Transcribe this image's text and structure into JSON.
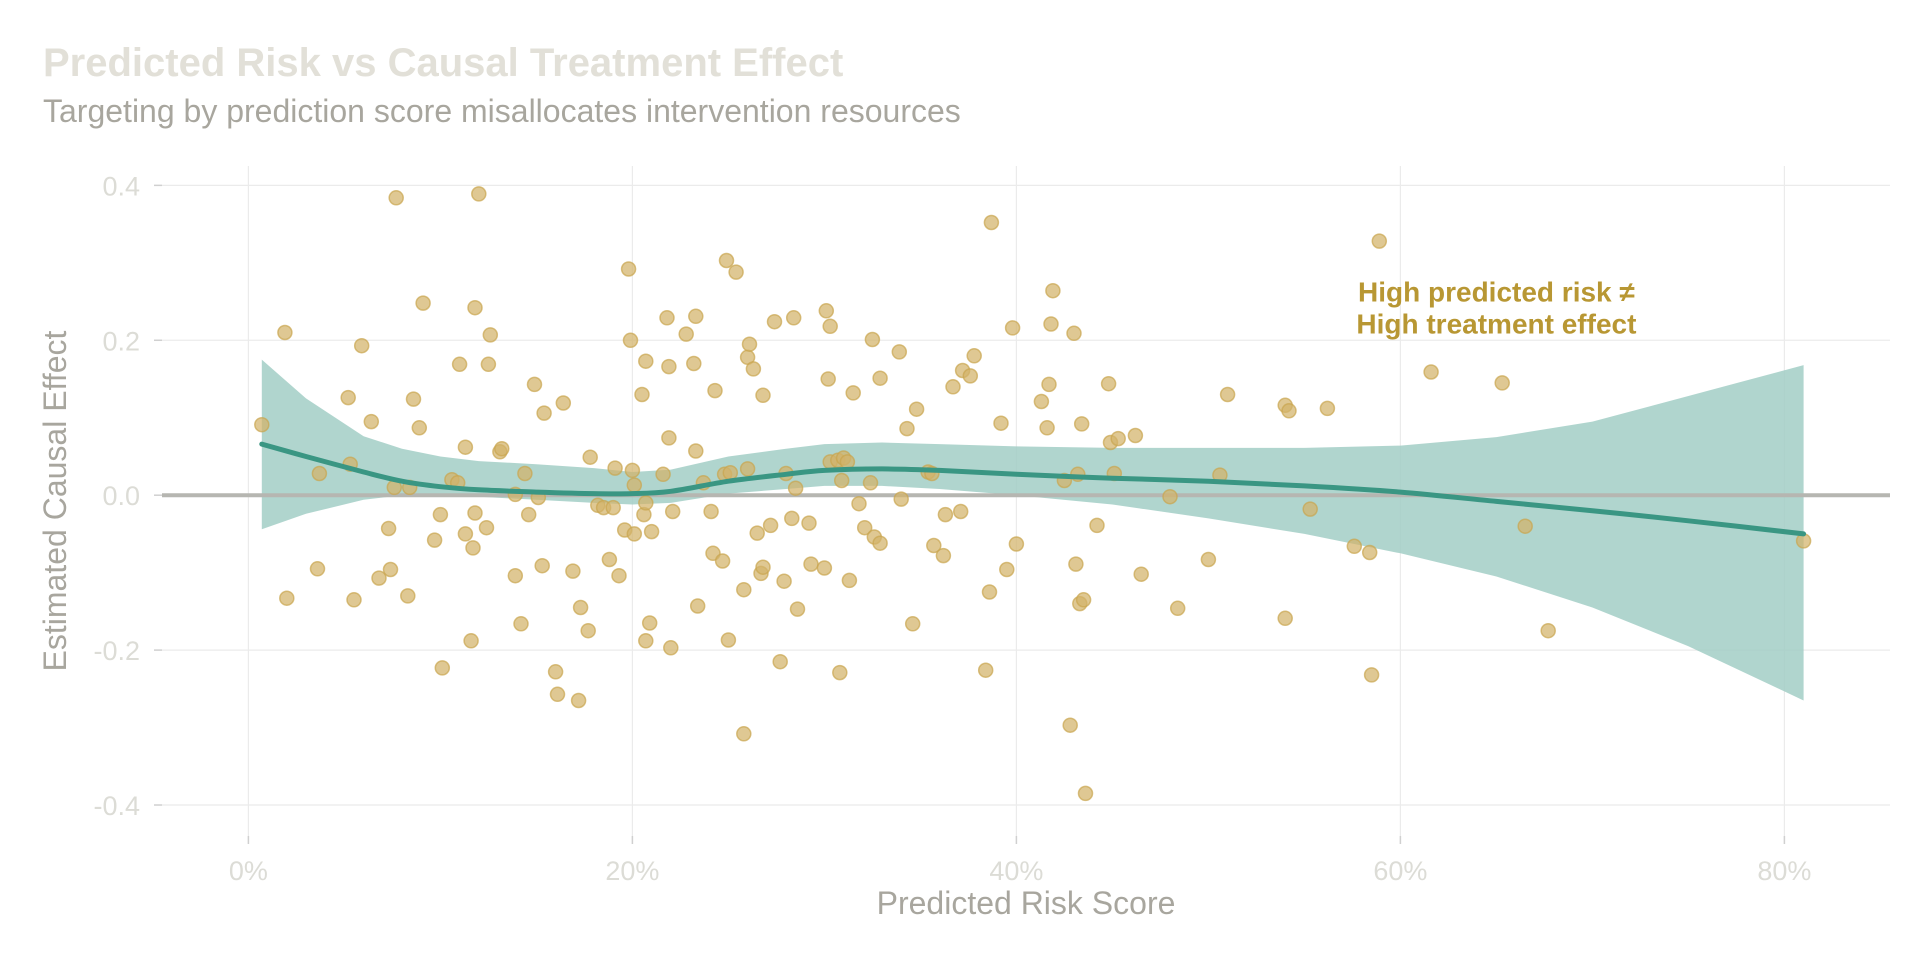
{
  "chart_data": {
    "type": "scatter",
    "title": "Predicted Risk vs Causal Treatment Effect",
    "subtitle": "Targeting by prediction score misallocates intervention resources",
    "xlabel": "Predicted Risk Score",
    "ylabel": "Estimated Causal Effect",
    "xlim": [
      -0.045,
      0.855
    ],
    "ylim": [
      -0.44,
      0.425
    ],
    "x_ticks": [
      0,
      0.2,
      0.4,
      0.6,
      0.8
    ],
    "x_tick_labels": [
      "0%",
      "20%",
      "40%",
      "60%",
      "80%"
    ],
    "y_ticks": [
      0.4,
      0.2,
      0.0,
      -0.2,
      -0.4
    ],
    "y_tick_labels": [
      "0.4",
      "0.2",
      "0.0",
      "-0.2",
      "-0.4"
    ],
    "grid": true,
    "reference_line_y": 0,
    "annotation": {
      "lines": [
        "High predicted risk ≠",
        "High treatment effect"
      ],
      "x": 0.65,
      "y": 0.245
    },
    "colors": {
      "points": "#d2b36a",
      "smooth_line": "#3a9683",
      "confidence_band": "#9fccc3",
      "annotation": "#b89733",
      "reference_line": "#b6b6b1"
    },
    "smooth": {
      "x": [
        0.007,
        0.03,
        0.06,
        0.08,
        0.1,
        0.12,
        0.15,
        0.18,
        0.2,
        0.22,
        0.25,
        0.28,
        0.3,
        0.33,
        0.36,
        0.4,
        0.45,
        0.5,
        0.55,
        0.6,
        0.65,
        0.7,
        0.75,
        0.81
      ],
      "y": [
        0.066,
        0.05,
        0.03,
        0.018,
        0.011,
        0.007,
        0.004,
        0.002,
        0.002,
        0.005,
        0.018,
        0.027,
        0.032,
        0.034,
        0.032,
        0.027,
        0.022,
        0.018,
        0.012,
        0.004,
        -0.008,
        -0.02,
        -0.033,
        -0.05
      ],
      "lower": [
        -0.044,
        -0.024,
        -0.006,
        0.0,
        0.001,
        -0.002,
        -0.006,
        -0.01,
        -0.012,
        -0.01,
        0.002,
        0.008,
        0.012,
        0.012,
        0.008,
        0.0,
        -0.012,
        -0.03,
        -0.05,
        -0.075,
        -0.105,
        -0.145,
        -0.195,
        -0.265
      ],
      "upper": [
        0.175,
        0.125,
        0.076,
        0.06,
        0.05,
        0.044,
        0.04,
        0.035,
        0.03,
        0.033,
        0.05,
        0.06,
        0.066,
        0.068,
        0.066,
        0.063,
        0.061,
        0.061,
        0.061,
        0.064,
        0.075,
        0.095,
        0.128,
        0.168
      ]
    },
    "points": [
      {
        "x": 0.007,
        "y": 0.091
      },
      {
        "x": 0.019,
        "y": 0.21
      },
      {
        "x": 0.02,
        "y": -0.133
      },
      {
        "x": 0.036,
        "y": -0.095
      },
      {
        "x": 0.037,
        "y": 0.028
      },
      {
        "x": 0.052,
        "y": 0.126
      },
      {
        "x": 0.053,
        "y": 0.04
      },
      {
        "x": 0.055,
        "y": -0.135
      },
      {
        "x": 0.059,
        "y": 0.193
      },
      {
        "x": 0.064,
        "y": 0.095
      },
      {
        "x": 0.068,
        "y": -0.107
      },
      {
        "x": 0.073,
        "y": -0.043
      },
      {
        "x": 0.074,
        "y": -0.096
      },
      {
        "x": 0.076,
        "y": 0.01
      },
      {
        "x": 0.077,
        "y": 0.384
      },
      {
        "x": 0.083,
        "y": -0.13
      },
      {
        "x": 0.084,
        "y": 0.01
      },
      {
        "x": 0.086,
        "y": 0.124
      },
      {
        "x": 0.089,
        "y": 0.087
      },
      {
        "x": 0.091,
        "y": 0.248
      },
      {
        "x": 0.097,
        "y": -0.058
      },
      {
        "x": 0.1,
        "y": -0.025
      },
      {
        "x": 0.101,
        "y": -0.223
      },
      {
        "x": 0.106,
        "y": 0.02
      },
      {
        "x": 0.109,
        "y": 0.016
      },
      {
        "x": 0.11,
        "y": 0.169
      },
      {
        "x": 0.113,
        "y": -0.05
      },
      {
        "x": 0.113,
        "y": 0.062
      },
      {
        "x": 0.116,
        "y": -0.188
      },
      {
        "x": 0.117,
        "y": -0.068
      },
      {
        "x": 0.118,
        "y": -0.023
      },
      {
        "x": 0.118,
        "y": 0.242
      },
      {
        "x": 0.12,
        "y": 0.389
      },
      {
        "x": 0.124,
        "y": -0.042
      },
      {
        "x": 0.125,
        "y": 0.169
      },
      {
        "x": 0.126,
        "y": 0.207
      },
      {
        "x": 0.131,
        "y": 0.056
      },
      {
        "x": 0.132,
        "y": 0.06
      },
      {
        "x": 0.139,
        "y": 0.001
      },
      {
        "x": 0.139,
        "y": -0.104
      },
      {
        "x": 0.142,
        "y": -0.166
      },
      {
        "x": 0.144,
        "y": 0.028
      },
      {
        "x": 0.146,
        "y": -0.025
      },
      {
        "x": 0.149,
        "y": 0.143
      },
      {
        "x": 0.151,
        "y": -0.003
      },
      {
        "x": 0.153,
        "y": -0.091
      },
      {
        "x": 0.154,
        "y": 0.106
      },
      {
        "x": 0.16,
        "y": -0.228
      },
      {
        "x": 0.161,
        "y": -0.257
      },
      {
        "x": 0.164,
        "y": 0.119
      },
      {
        "x": 0.169,
        "y": -0.098
      },
      {
        "x": 0.172,
        "y": -0.265
      },
      {
        "x": 0.173,
        "y": -0.145
      },
      {
        "x": 0.177,
        "y": -0.175
      },
      {
        "x": 0.178,
        "y": 0.049
      },
      {
        "x": 0.182,
        "y": -0.013
      },
      {
        "x": 0.185,
        "y": -0.016
      },
      {
        "x": 0.188,
        "y": -0.083
      },
      {
        "x": 0.19,
        "y": -0.016
      },
      {
        "x": 0.191,
        "y": 0.035
      },
      {
        "x": 0.193,
        "y": -0.104
      },
      {
        "x": 0.196,
        "y": -0.045
      },
      {
        "x": 0.198,
        "y": 0.292
      },
      {
        "x": 0.199,
        "y": 0.2
      },
      {
        "x": 0.2,
        "y": 0.032
      },
      {
        "x": 0.201,
        "y": -0.05
      },
      {
        "x": 0.201,
        "y": 0.013
      },
      {
        "x": 0.205,
        "y": 0.13
      },
      {
        "x": 0.206,
        "y": -0.025
      },
      {
        "x": 0.207,
        "y": -0.01
      },
      {
        "x": 0.207,
        "y": -0.188
      },
      {
        "x": 0.207,
        "y": 0.173
      },
      {
        "x": 0.209,
        "y": -0.165
      },
      {
        "x": 0.21,
        "y": -0.047
      },
      {
        "x": 0.216,
        "y": 0.027
      },
      {
        "x": 0.218,
        "y": 0.229
      },
      {
        "x": 0.219,
        "y": 0.074
      },
      {
        "x": 0.219,
        "y": 0.166
      },
      {
        "x": 0.22,
        "y": -0.197
      },
      {
        "x": 0.221,
        "y": -0.021
      },
      {
        "x": 0.228,
        "y": 0.208
      },
      {
        "x": 0.232,
        "y": 0.17
      },
      {
        "x": 0.233,
        "y": 0.057
      },
      {
        "x": 0.233,
        "y": 0.231
      },
      {
        "x": 0.234,
        "y": -0.143
      },
      {
        "x": 0.237,
        "y": 0.016
      },
      {
        "x": 0.241,
        "y": -0.021
      },
      {
        "x": 0.242,
        "y": -0.075
      },
      {
        "x": 0.243,
        "y": 0.135
      },
      {
        "x": 0.247,
        "y": -0.085
      },
      {
        "x": 0.248,
        "y": 0.027
      },
      {
        "x": 0.249,
        "y": 0.303
      },
      {
        "x": 0.25,
        "y": -0.187
      },
      {
        "x": 0.251,
        "y": 0.029
      },
      {
        "x": 0.254,
        "y": 0.288
      },
      {
        "x": 0.258,
        "y": -0.122
      },
      {
        "x": 0.258,
        "y": -0.308
      },
      {
        "x": 0.26,
        "y": 0.178
      },
      {
        "x": 0.26,
        "y": 0.034
      },
      {
        "x": 0.261,
        "y": 0.195
      },
      {
        "x": 0.263,
        "y": 0.163
      },
      {
        "x": 0.265,
        "y": -0.049
      },
      {
        "x": 0.267,
        "y": -0.101
      },
      {
        "x": 0.268,
        "y": -0.093
      },
      {
        "x": 0.268,
        "y": 0.129
      },
      {
        "x": 0.272,
        "y": -0.039
      },
      {
        "x": 0.274,
        "y": 0.224
      },
      {
        "x": 0.277,
        "y": -0.215
      },
      {
        "x": 0.279,
        "y": -0.111
      },
      {
        "x": 0.28,
        "y": 0.028
      },
      {
        "x": 0.283,
        "y": -0.03
      },
      {
        "x": 0.284,
        "y": 0.229
      },
      {
        "x": 0.285,
        "y": 0.009
      },
      {
        "x": 0.286,
        "y": -0.147
      },
      {
        "x": 0.292,
        "y": -0.036
      },
      {
        "x": 0.293,
        "y": -0.089
      },
      {
        "x": 0.3,
        "y": -0.094
      },
      {
        "x": 0.301,
        "y": 0.238
      },
      {
        "x": 0.302,
        "y": 0.15
      },
      {
        "x": 0.303,
        "y": 0.218
      },
      {
        "x": 0.303,
        "y": 0.043
      },
      {
        "x": 0.307,
        "y": 0.045
      },
      {
        "x": 0.308,
        "y": -0.229
      },
      {
        "x": 0.309,
        "y": 0.019
      },
      {
        "x": 0.31,
        "y": 0.048
      },
      {
        "x": 0.312,
        "y": 0.043
      },
      {
        "x": 0.313,
        "y": -0.11
      },
      {
        "x": 0.315,
        "y": 0.132
      },
      {
        "x": 0.318,
        "y": -0.011
      },
      {
        "x": 0.321,
        "y": -0.042
      },
      {
        "x": 0.324,
        "y": 0.016
      },
      {
        "x": 0.325,
        "y": 0.201
      },
      {
        "x": 0.326,
        "y": -0.054
      },
      {
        "x": 0.329,
        "y": -0.062
      },
      {
        "x": 0.329,
        "y": 0.151
      },
      {
        "x": 0.339,
        "y": 0.185
      },
      {
        "x": 0.34,
        "y": -0.005
      },
      {
        "x": 0.343,
        "y": 0.086
      },
      {
        "x": 0.346,
        "y": -0.166
      },
      {
        "x": 0.348,
        "y": 0.111
      },
      {
        "x": 0.354,
        "y": 0.03
      },
      {
        "x": 0.356,
        "y": 0.028
      },
      {
        "x": 0.357,
        "y": -0.065
      },
      {
        "x": 0.362,
        "y": -0.078
      },
      {
        "x": 0.363,
        "y": -0.025
      },
      {
        "x": 0.367,
        "y": 0.14
      },
      {
        "x": 0.371,
        "y": -0.021
      },
      {
        "x": 0.372,
        "y": 0.161
      },
      {
        "x": 0.376,
        "y": 0.154
      },
      {
        "x": 0.378,
        "y": 0.18
      },
      {
        "x": 0.384,
        "y": -0.226
      },
      {
        "x": 0.386,
        "y": -0.125
      },
      {
        "x": 0.387,
        "y": 0.352
      },
      {
        "x": 0.392,
        "y": 0.093
      },
      {
        "x": 0.395,
        "y": -0.096
      },
      {
        "x": 0.398,
        "y": 0.216
      },
      {
        "x": 0.4,
        "y": -0.063
      },
      {
        "x": 0.413,
        "y": 0.121
      },
      {
        "x": 0.416,
        "y": 0.087
      },
      {
        "x": 0.417,
        "y": 0.143
      },
      {
        "x": 0.418,
        "y": 0.221
      },
      {
        "x": 0.419,
        "y": 0.264
      },
      {
        "x": 0.425,
        "y": 0.019
      },
      {
        "x": 0.428,
        "y": -0.297
      },
      {
        "x": 0.43,
        "y": 0.209
      },
      {
        "x": 0.431,
        "y": -0.089
      },
      {
        "x": 0.432,
        "y": 0.027
      },
      {
        "x": 0.433,
        "y": -0.14
      },
      {
        "x": 0.434,
        "y": 0.092
      },
      {
        "x": 0.435,
        "y": -0.135
      },
      {
        "x": 0.436,
        "y": -0.385
      },
      {
        "x": 0.442,
        "y": -0.039
      },
      {
        "x": 0.448,
        "y": 0.144
      },
      {
        "x": 0.449,
        "y": 0.068
      },
      {
        "x": 0.451,
        "y": 0.028
      },
      {
        "x": 0.453,
        "y": 0.073
      },
      {
        "x": 0.462,
        "y": 0.077
      },
      {
        "x": 0.465,
        "y": -0.102
      },
      {
        "x": 0.48,
        "y": -0.002
      },
      {
        "x": 0.484,
        "y": -0.146
      },
      {
        "x": 0.5,
        "y": -0.083
      },
      {
        "x": 0.506,
        "y": 0.026
      },
      {
        "x": 0.51,
        "y": 0.13
      },
      {
        "x": 0.54,
        "y": -0.159
      },
      {
        "x": 0.54,
        "y": 0.116
      },
      {
        "x": 0.542,
        "y": 0.109
      },
      {
        "x": 0.553,
        "y": -0.018
      },
      {
        "x": 0.562,
        "y": 0.112
      },
      {
        "x": 0.576,
        "y": -0.066
      },
      {
        "x": 0.584,
        "y": -0.074
      },
      {
        "x": 0.585,
        "y": -0.232
      },
      {
        "x": 0.589,
        "y": 0.328
      },
      {
        "x": 0.616,
        "y": 0.159
      },
      {
        "x": 0.653,
        "y": 0.145
      },
      {
        "x": 0.665,
        "y": -0.04
      },
      {
        "x": 0.677,
        "y": -0.175
      },
      {
        "x": 0.81,
        "y": -0.059
      }
    ]
  }
}
